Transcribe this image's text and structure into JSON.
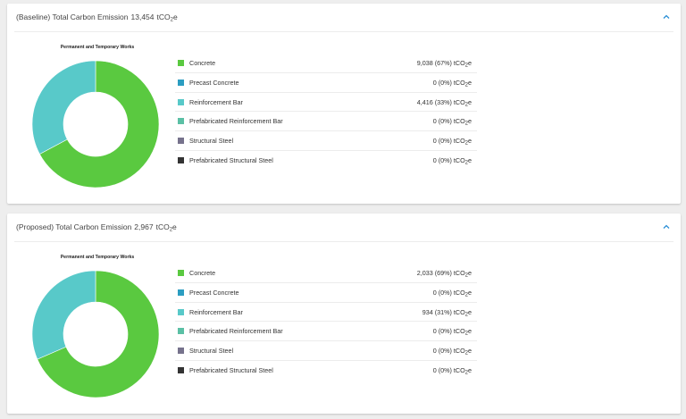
{
  "colors": {
    "concrete": "#5ac940",
    "precast_concrete": "#2b9dc1",
    "reinforcement_bar": "#58c9c9",
    "prefabricated_reinforcement_bar": "#5bc0a5",
    "structural_steel": "#76728c",
    "prefabricated_structural_steel": "#333333",
    "accent": "#2b8fd6"
  },
  "panels": [
    {
      "title_prefix": "(Baseline) Total Carbon Emission",
      "total": "13,454",
      "unit_main": "tCO",
      "unit_sub": "2",
      "unit_suffix": "e",
      "collapse_icon": "chevron-up-icon",
      "chart_title": "Permanent and Temporary Works",
      "rows": [
        {
          "label": "Concrete",
          "value": "9,038 (67%)",
          "unit_main": "tCO",
          "unit_sub": "2",
          "unit_suffix": "e",
          "color_key": "concrete"
        },
        {
          "label": "Precast Concrete",
          "value": "0 (0%)",
          "unit_main": "tCO",
          "unit_sub": "2",
          "unit_suffix": "e",
          "color_key": "precast_concrete"
        },
        {
          "label": "Reinforcement Bar",
          "value": "4,416 (33%)",
          "unit_main": "tCO",
          "unit_sub": "2",
          "unit_suffix": "e",
          "color_key": "reinforcement_bar"
        },
        {
          "label": "Prefabricated Reinforcement Bar",
          "value": "0 (0%)",
          "unit_main": "tCO",
          "unit_sub": "2",
          "unit_suffix": "e",
          "color_key": "prefabricated_reinforcement_bar"
        },
        {
          "label": "Structural Steel",
          "value": "0 (0%)",
          "unit_main": "tCO",
          "unit_sub": "2",
          "unit_suffix": "e",
          "color_key": "structural_steel"
        },
        {
          "label": "Prefabricated Structural Steel",
          "value": "0 (0%)",
          "unit_main": "tCO",
          "unit_sub": "2",
          "unit_suffix": "e",
          "color_key": "prefabricated_structural_steel"
        }
      ]
    },
    {
      "title_prefix": "(Proposed) Total Carbon Emission",
      "total": "2,967",
      "unit_main": "tCO",
      "unit_sub": "2",
      "unit_suffix": "e",
      "collapse_icon": "chevron-up-icon",
      "chart_title": "Permanent and Temporary Works",
      "rows": [
        {
          "label": "Concrete",
          "value": "2,033 (69%)",
          "unit_main": "tCO",
          "unit_sub": "2",
          "unit_suffix": "e",
          "color_key": "concrete"
        },
        {
          "label": "Precast Concrete",
          "value": "0 (0%)",
          "unit_main": "tCO",
          "unit_sub": "2",
          "unit_suffix": "e",
          "color_key": "precast_concrete"
        },
        {
          "label": "Reinforcement Bar",
          "value": "934 (31%)",
          "unit_main": "tCO",
          "unit_sub": "2",
          "unit_suffix": "e",
          "color_key": "reinforcement_bar"
        },
        {
          "label": "Prefabricated Reinforcement Bar",
          "value": "0 (0%)",
          "unit_main": "tCO",
          "unit_sub": "2",
          "unit_suffix": "e",
          "color_key": "prefabricated_reinforcement_bar"
        },
        {
          "label": "Structural Steel",
          "value": "0 (0%)",
          "unit_main": "tCO",
          "unit_sub": "2",
          "unit_suffix": "e",
          "color_key": "structural_steel"
        },
        {
          "label": "Prefabricated Structural Steel",
          "value": "0 (0%)",
          "unit_main": "tCO",
          "unit_sub": "2",
          "unit_suffix": "e",
          "color_key": "prefabricated_structural_steel"
        }
      ]
    }
  ],
  "chart_data": [
    {
      "type": "pie",
      "title": "Permanent and Temporary Works",
      "categories": [
        "Concrete",
        "Precast Concrete",
        "Reinforcement Bar",
        "Prefabricated Reinforcement Bar",
        "Structural Steel",
        "Prefabricated Structural Steel"
      ],
      "values": [
        9038,
        0,
        4416,
        0,
        0,
        0
      ],
      "legend_position": "right"
    },
    {
      "type": "pie",
      "title": "Permanent and Temporary Works",
      "categories": [
        "Concrete",
        "Precast Concrete",
        "Reinforcement Bar",
        "Prefabricated Reinforcement Bar",
        "Structural Steel",
        "Prefabricated Structural Steel"
      ],
      "values": [
        2033,
        0,
        934,
        0,
        0,
        0
      ],
      "legend_position": "right"
    }
  ]
}
